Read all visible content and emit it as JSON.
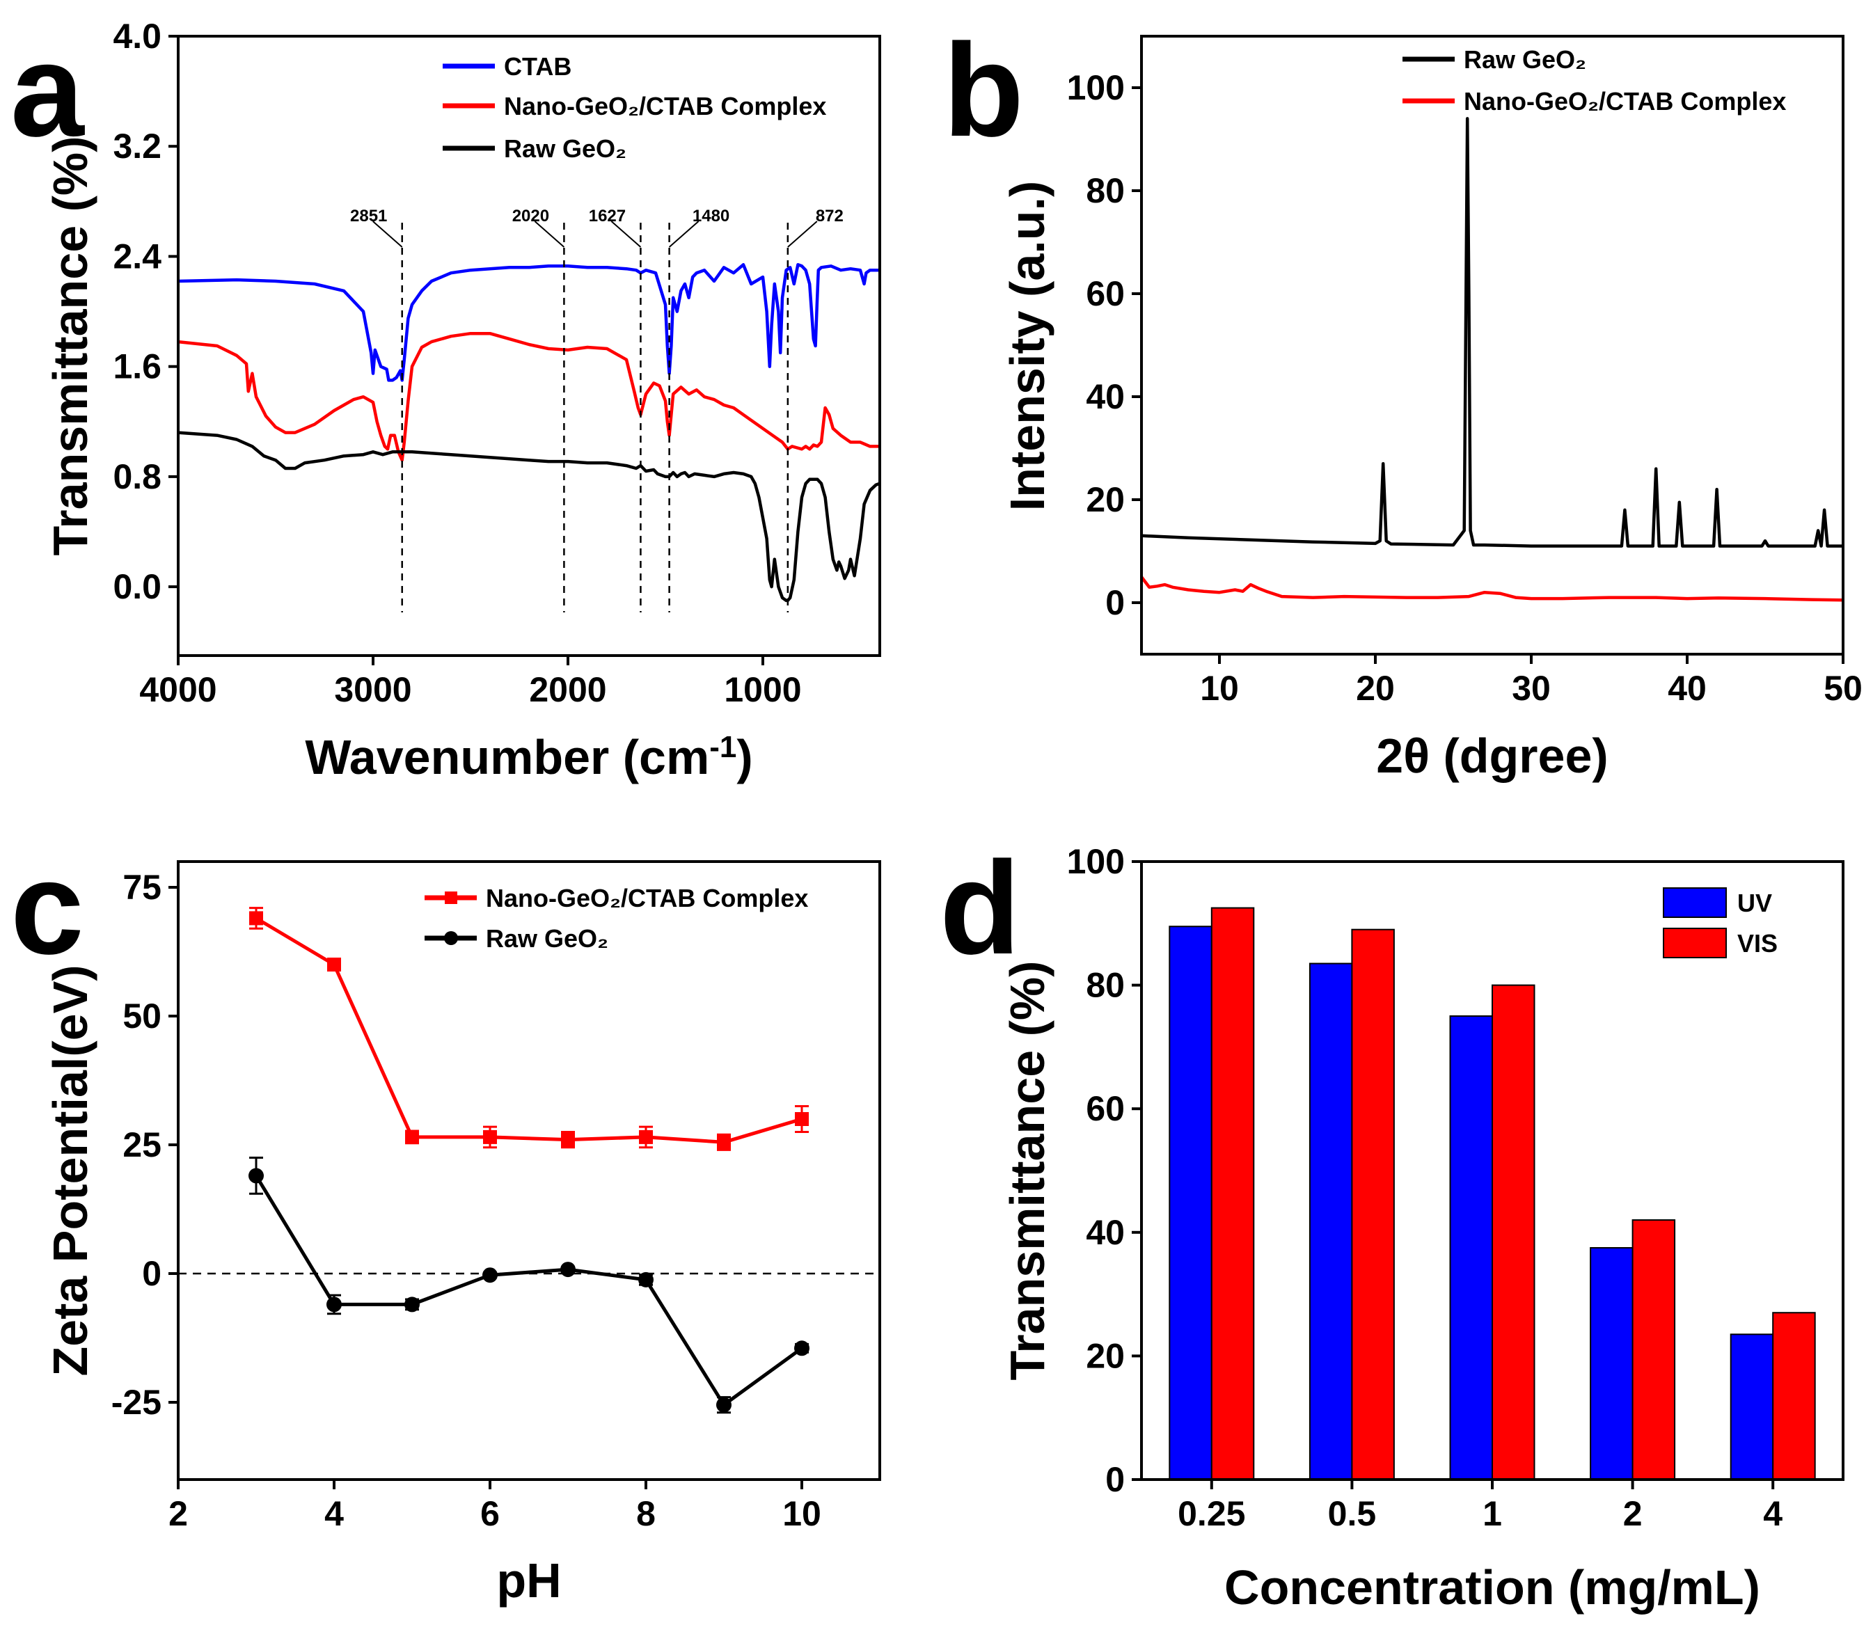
{
  "chart_data": [
    {
      "panel": "a",
      "type": "line",
      "xlabel": "Wavenumber (cm",
      "xlabel_sup": "-1",
      "xlabel_end": ")",
      "ylabel": "Transmittance (%)",
      "xlim": [
        4000,
        400
      ],
      "ylim": [
        -0.5,
        4.0
      ],
      "xticks": [
        "4000",
        "3000",
        "2000",
        "1000"
      ],
      "xtick_values": [
        4000,
        3000,
        2000,
        1000
      ],
      "yticks": [
        "0.0",
        "0.8",
        "1.6",
        "2.4",
        "3.2",
        "4.0"
      ],
      "ytick_values": [
        0.0,
        0.8,
        1.6,
        2.4,
        3.2,
        4.0
      ],
      "legend_position": "top-center",
      "annotations": [
        {
          "x": 2851,
          "label": "2851"
        },
        {
          "x": 2020,
          "label": "2020"
        },
        {
          "x": 1627,
          "label": "1627"
        },
        {
          "x": 1480,
          "label": "1480"
        },
        {
          "x": 872,
          "label": "872"
        }
      ],
      "series": [
        {
          "name": "CTAB",
          "color": "#0000ff",
          "x": [
            4000,
            3700,
            3500,
            3300,
            3150,
            3050,
            3010,
            3000,
            2990,
            2960,
            2930,
            2920,
            2900,
            2880,
            2860,
            2851,
            2840,
            2820,
            2800,
            2750,
            2700,
            2600,
            2500,
            2400,
            2300,
            2200,
            2100,
            2000,
            1900,
            1800,
            1700,
            1650,
            1627,
            1600,
            1550,
            1500,
            1490,
            1480,
            1470,
            1460,
            1440,
            1420,
            1400,
            1380,
            1360,
            1340,
            1300,
            1250,
            1200,
            1150,
            1100,
            1060,
            1000,
            980,
            965,
            955,
            940,
            920,
            910,
            900,
            880,
            860,
            840,
            820,
            800,
            780,
            760,
            740,
            730,
            722,
            715,
            700,
            650,
            600,
            550,
            500,
            480,
            470,
            450,
            420,
            400
          ],
          "y": [
            2.22,
            2.23,
            2.22,
            2.2,
            2.15,
            2.0,
            1.7,
            1.55,
            1.72,
            1.6,
            1.58,
            1.5,
            1.5,
            1.52,
            1.57,
            1.5,
            1.65,
            1.95,
            2.05,
            2.15,
            2.22,
            2.28,
            2.3,
            2.31,
            2.32,
            2.32,
            2.33,
            2.33,
            2.32,
            2.32,
            2.31,
            2.3,
            2.28,
            2.3,
            2.28,
            2.05,
            1.75,
            1.55,
            1.75,
            2.1,
            2.0,
            2.15,
            2.2,
            2.1,
            2.25,
            2.28,
            2.3,
            2.22,
            2.32,
            2.28,
            2.34,
            2.2,
            2.25,
            2.0,
            1.6,
            1.9,
            2.2,
            2.0,
            1.7,
            2.1,
            2.3,
            2.32,
            2.2,
            2.34,
            2.33,
            2.3,
            2.2,
            1.8,
            1.75,
            2.05,
            2.3,
            2.32,
            2.33,
            2.3,
            2.31,
            2.3,
            2.2,
            2.28,
            2.3,
            2.3,
            2.3
          ]
        },
        {
          "name": "Nano-GeO₂/CTAB Complex",
          "color": "#ff0000",
          "x": [
            4000,
            3800,
            3700,
            3650,
            3640,
            3620,
            3600,
            3550,
            3500,
            3450,
            3400,
            3300,
            3200,
            3100,
            3050,
            3000,
            2980,
            2960,
            2940,
            2925,
            2910,
            2890,
            2870,
            2851,
            2840,
            2820,
            2800,
            2750,
            2700,
            2600,
            2500,
            2400,
            2300,
            2200,
            2100,
            2000,
            1900,
            1800,
            1700,
            1660,
            1640,
            1627,
            1600,
            1560,
            1530,
            1500,
            1490,
            1480,
            1470,
            1460,
            1420,
            1380,
            1340,
            1300,
            1250,
            1200,
            1150,
            1100,
            1050,
            1000,
            950,
            900,
            872,
            850,
            800,
            780,
            760,
            740,
            720,
            700,
            680,
            660,
            640,
            600,
            550,
            500,
            450,
            400
          ],
          "y": [
            1.78,
            1.75,
            1.68,
            1.62,
            1.42,
            1.55,
            1.38,
            1.24,
            1.16,
            1.12,
            1.12,
            1.18,
            1.28,
            1.36,
            1.38,
            1.34,
            1.2,
            1.1,
            1.02,
            1.0,
            1.1,
            1.1,
            0.98,
            0.92,
            1.05,
            1.35,
            1.6,
            1.74,
            1.78,
            1.82,
            1.84,
            1.84,
            1.8,
            1.76,
            1.73,
            1.72,
            1.74,
            1.73,
            1.65,
            1.42,
            1.3,
            1.25,
            1.4,
            1.48,
            1.46,
            1.35,
            1.2,
            1.1,
            1.25,
            1.4,
            1.45,
            1.4,
            1.43,
            1.38,
            1.36,
            1.32,
            1.3,
            1.25,
            1.2,
            1.15,
            1.1,
            1.05,
            1.0,
            1.02,
            1.0,
            1.02,
            1.0,
            1.03,
            1.02,
            1.05,
            1.3,
            1.25,
            1.15,
            1.1,
            1.05,
            1.05,
            1.02,
            1.02
          ]
        },
        {
          "name": "Raw GeO₂",
          "color": "#000000",
          "x": [
            4000,
            3800,
            3700,
            3620,
            3560,
            3500,
            3450,
            3400,
            3350,
            3250,
            3150,
            3050,
            3000,
            2950,
            2900,
            2851,
            2800,
            2700,
            2600,
            2500,
            2400,
            2300,
            2200,
            2100,
            2000,
            1900,
            1800,
            1700,
            1650,
            1627,
            1600,
            1560,
            1540,
            1500,
            1480,
            1460,
            1440,
            1420,
            1400,
            1380,
            1350,
            1300,
            1250,
            1200,
            1150,
            1100,
            1060,
            1040,
            1020,
            1000,
            980,
            965,
            955,
            940,
            920,
            900,
            880,
            872,
            860,
            840,
            820,
            800,
            780,
            760,
            740,
            720,
            700,
            680,
            660,
            640,
            620,
            610,
            600,
            580,
            560,
            550,
            530,
            500,
            480,
            450,
            420,
            400
          ],
          "y": [
            1.12,
            1.1,
            1.07,
            1.02,
            0.95,
            0.92,
            0.86,
            0.86,
            0.9,
            0.92,
            0.95,
            0.96,
            0.98,
            0.96,
            0.98,
            0.98,
            0.98,
            0.97,
            0.96,
            0.95,
            0.94,
            0.93,
            0.92,
            0.91,
            0.91,
            0.9,
            0.9,
            0.88,
            0.86,
            0.88,
            0.84,
            0.85,
            0.82,
            0.8,
            0.8,
            0.83,
            0.8,
            0.82,
            0.83,
            0.8,
            0.82,
            0.81,
            0.8,
            0.82,
            0.83,
            0.82,
            0.8,
            0.75,
            0.65,
            0.5,
            0.35,
            0.05,
            0.0,
            0.2,
            0.0,
            -0.08,
            -0.1,
            -0.1,
            -0.08,
            0.05,
            0.4,
            0.65,
            0.75,
            0.78,
            0.78,
            0.78,
            0.75,
            0.65,
            0.4,
            0.2,
            0.12,
            0.18,
            0.15,
            0.06,
            0.12,
            0.2,
            0.08,
            0.35,
            0.6,
            0.7,
            0.74,
            0.75
          ]
        }
      ]
    },
    {
      "panel": "b",
      "type": "line",
      "xlabel": "2θ (dgree)",
      "ylabel": "Intensity (a.u.)",
      "xlim": [
        5,
        50
      ],
      "ylim": [
        -10,
        110
      ],
      "xticks": [
        "10",
        "20",
        "30",
        "40",
        "50"
      ],
      "xtick_values": [
        10,
        20,
        30,
        40,
        50
      ],
      "yticks": [
        "0",
        "20",
        "40",
        "60",
        "80",
        "100"
      ],
      "ytick_values": [
        0,
        20,
        40,
        60,
        80,
        100
      ],
      "legend_position": "top-center",
      "series": [
        {
          "name": "Raw GeO₂",
          "color": "#000000",
          "x": [
            5,
            8,
            12,
            16,
            20,
            20.3,
            20.5,
            20.7,
            21,
            25,
            25.7,
            25.9,
            26.0,
            26.1,
            26.3,
            27,
            30,
            35.8,
            36.0,
            36.2,
            37.8,
            38.0,
            38.2,
            39.3,
            39.5,
            39.7,
            41.7,
            41.9,
            42.1,
            44.8,
            45.0,
            45.2,
            48.2,
            48.4,
            48.6,
            48.8,
            49.0,
            50
          ],
          "y": [
            13,
            12.6,
            12.2,
            11.8,
            11.5,
            12,
            27,
            12,
            11.4,
            11.2,
            14,
            94,
            60,
            14,
            11.2,
            11.2,
            11,
            11,
            18,
            11,
            11,
            26,
            11,
            11,
            19.5,
            11,
            11,
            22,
            11,
            11,
            12,
            11,
            11,
            14,
            11,
            18,
            11,
            11
          ]
        },
        {
          "name": "Nano-GeO₂/CTAB Complex",
          "color": "#ff0000",
          "x": [
            5,
            5.5,
            6,
            6.5,
            7,
            8,
            9,
            10,
            11,
            11.5,
            12,
            12.5,
            13,
            14,
            16,
            18,
            20,
            22,
            24,
            26,
            27,
            28,
            29,
            30,
            32,
            35,
            38,
            40,
            42,
            45,
            48,
            50
          ],
          "y": [
            5,
            3,
            3.2,
            3.5,
            3,
            2.5,
            2.2,
            2,
            2.5,
            2.2,
            3.5,
            2.8,
            2.2,
            1.2,
            1,
            1.2,
            1.1,
            1,
            1,
            1.2,
            2,
            1.8,
            1,
            0.8,
            0.8,
            1,
            1,
            0.8,
            0.9,
            0.8,
            0.6,
            0.5
          ]
        }
      ]
    },
    {
      "panel": "c",
      "type": "line",
      "xlabel": "pH",
      "ylabel": "Zeta Potential(eV)",
      "xlim": [
        2,
        11
      ],
      "ylim": [
        -40,
        80
      ],
      "xticks": [
        "2",
        "4",
        "6",
        "8",
        "10"
      ],
      "xtick_values": [
        2,
        4,
        6,
        8,
        10
      ],
      "yticks": [
        "-25",
        "0",
        "25",
        "50",
        "75"
      ],
      "ytick_values": [
        -25,
        0,
        25,
        50,
        75
      ],
      "zero_line": true,
      "legend_position": "top-right",
      "series": [
        {
          "name": "Nano-GeO₂/CTAB Complex",
          "color": "#ff0000",
          "marker": "square",
          "x": [
            3,
            4,
            5,
            6,
            7,
            8,
            9,
            10
          ],
          "y": [
            69,
            60,
            26.5,
            26.5,
            26,
            26.5,
            25.5,
            30
          ],
          "err": [
            2,
            1,
            1.2,
            2,
            1.5,
            2,
            1.5,
            2.5
          ]
        },
        {
          "name": "Raw GeO₂",
          "color": "#000000",
          "marker": "circle",
          "x": [
            3,
            4,
            5,
            6,
            7,
            8,
            9,
            10
          ],
          "y": [
            19,
            -6,
            -6,
            -0.3,
            0.8,
            -1.2,
            -25.5,
            -14.5
          ],
          "err": [
            3.5,
            1.8,
            1,
            0.5,
            0.5,
            1,
            1.5,
            0.8
          ]
        }
      ]
    },
    {
      "panel": "d",
      "type": "bar",
      "xlabel": "Concentration (mg/mL)",
      "ylabel": "Transmittance (%)",
      "categories": [
        "0.25",
        "0.5",
        "1",
        "2",
        "4"
      ],
      "ylim": [
        0,
        100
      ],
      "yticks": [
        "0",
        "20",
        "40",
        "60",
        "80",
        "100"
      ],
      "ytick_values": [
        0,
        20,
        40,
        60,
        80,
        100
      ],
      "legend_position": "top-right",
      "series": [
        {
          "name": "UV",
          "color": "#0000ff",
          "values": [
            89.5,
            83.5,
            75,
            37.5,
            23.5
          ]
        },
        {
          "name": "VIS",
          "color": "#ff0000",
          "values": [
            92.5,
            89,
            80,
            42,
            27
          ]
        }
      ]
    }
  ]
}
